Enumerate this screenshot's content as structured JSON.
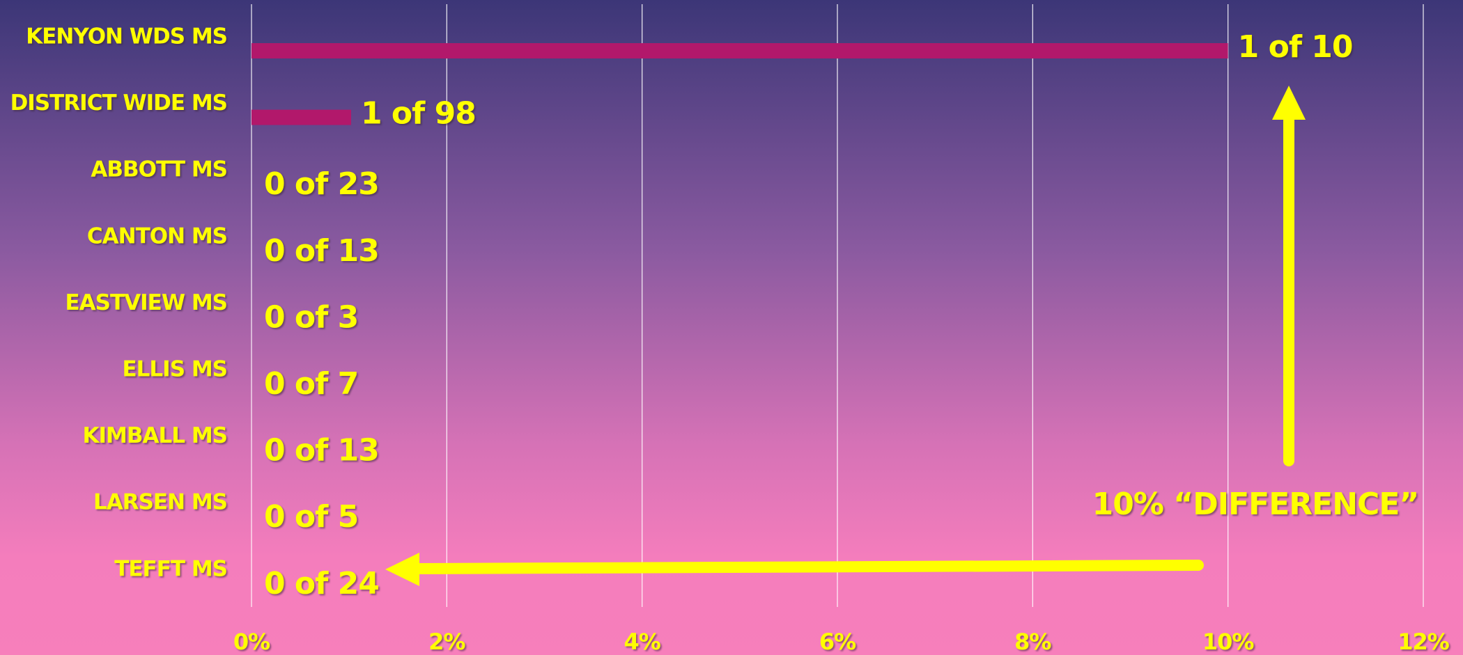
{
  "chart_data": {
    "type": "bar",
    "orientation": "horizontal",
    "categories": [
      "KENYON WDS MS",
      "DISTRICT WIDE MS",
      "ABBOTT MS",
      "CANTON MS",
      "EASTVIEW MS",
      "ELLIS MS",
      "KIMBALL MS",
      "LARSEN MS",
      "TEFFT MS"
    ],
    "values": [
      10,
      1.02,
      0,
      0,
      0,
      0,
      0,
      0,
      0
    ],
    "value_unit": "%",
    "data_labels": [
      "1 of 10",
      "1 of 98",
      "0 of 23",
      "0 of 13",
      "0 of 3",
      "0 of 7",
      "0 of 13",
      "0 of 5",
      "0 of 24"
    ],
    "xlim": [
      0,
      12
    ],
    "xticks": [
      0,
      2,
      4,
      6,
      8,
      10,
      12
    ],
    "xtick_labels": [
      "0%",
      "2%",
      "4%",
      "6%",
      "8%",
      "10%",
      "12%"
    ],
    "title": "",
    "xlabel": "",
    "ylabel": "",
    "grid": "vertical",
    "legend": "none",
    "annotation": {
      "text": "10% “DIFFERENCE”",
      "arrow_up_target": "KENYON WDS MS",
      "arrow_left_target": "TEFFT MS"
    }
  },
  "colors": {
    "bar": "#b2186b",
    "text": "#ffff00",
    "arrow": "#ffff00",
    "grid": "#ffffff",
    "background_top": "#3c3677",
    "background_bottom": "#f77fbb"
  }
}
